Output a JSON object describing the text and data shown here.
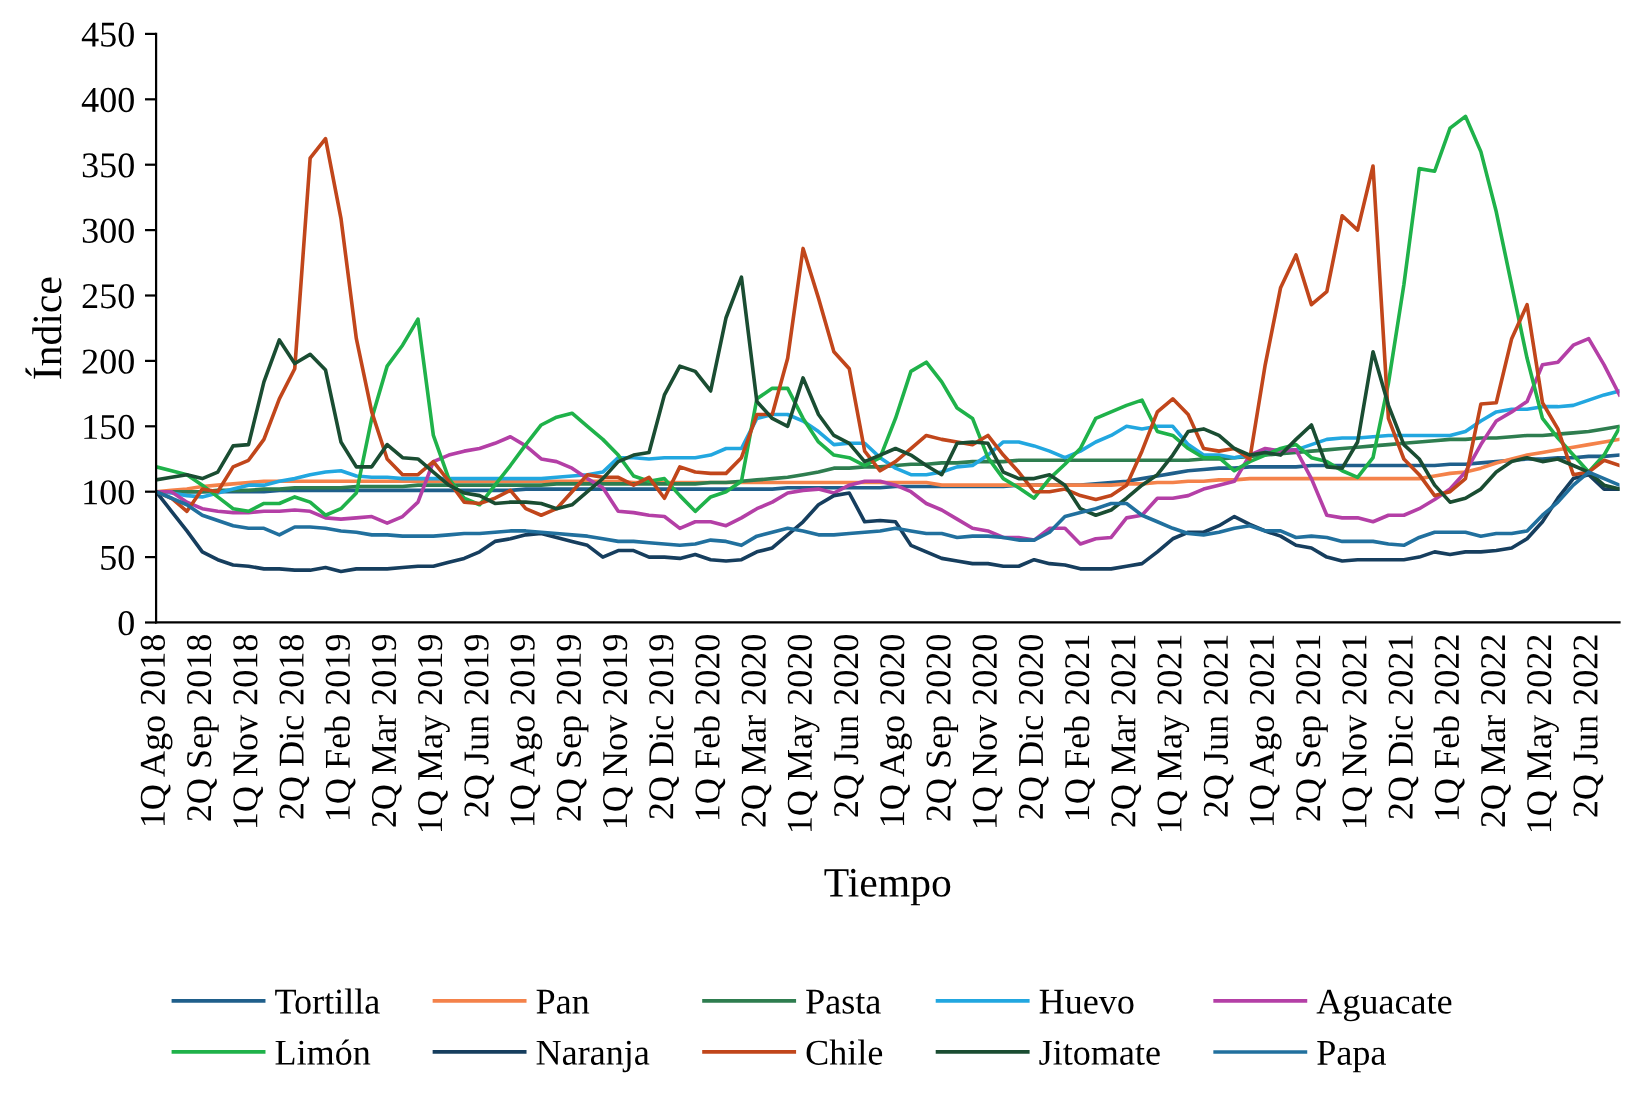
{
  "chart_data": {
    "type": "line",
    "xlabel": "Tiempo",
    "ylabel": "Índice",
    "categories": [
      "1Q Ago 2018",
      null,
      null,
      "2Q Sep 2018",
      null,
      null,
      "1Q Nov 2018",
      null,
      null,
      "2Q Dic 2018",
      null,
      null,
      "1Q Feb 2019",
      null,
      null,
      "2Q Mar 2019",
      null,
      null,
      "1Q May 2019",
      null,
      null,
      "2Q Jun 2019",
      null,
      null,
      "1Q Ago 2019",
      null,
      null,
      "2Q Sep 2019",
      null,
      null,
      "1Q Nov 2019",
      null,
      null,
      "2Q Dic 2019",
      null,
      null,
      "1Q Feb 2020",
      null,
      null,
      "2Q Mar 2020",
      null,
      null,
      "1Q May 2020",
      null,
      null,
      "2Q Jun 2020",
      null,
      null,
      "1Q Ago 2020",
      null,
      null,
      "2Q Sep 2020",
      null,
      null,
      "1Q Nov 2020",
      null,
      null,
      "2Q Dic 2020",
      null,
      null,
      "1Q Feb 2021",
      null,
      null,
      "2Q Mar 2021",
      null,
      null,
      "1Q May 2021",
      null,
      null,
      "2Q Jun 2021",
      null,
      null,
      "1Q Ago 2021",
      null,
      null,
      "2Q Sep 2021",
      null,
      null,
      "1Q Nov 2021",
      null,
      null,
      "2Q Dic 2021",
      null,
      null,
      "1Q Feb 2022",
      null,
      null,
      "2Q Mar 2022",
      null,
      null,
      "1Q May 2022",
      null,
      null,
      "2Q Jun 2022",
      null,
      null
    ],
    "series": [
      {
        "name": "Tortilla",
        "color": "#1f5f8b",
        "values": [
          100,
          100,
          100,
          100,
          100,
          100,
          100,
          100,
          101,
          101,
          101,
          101,
          101,
          101,
          101,
          101,
          101,
          101,
          101,
          101,
          101,
          101,
          101,
          101,
          102,
          102,
          102,
          102,
          102,
          102,
          102,
          102,
          102,
          102,
          102,
          102,
          102,
          102,
          102,
          102,
          102,
          103,
          103,
          103,
          103,
          103,
          103,
          103,
          104,
          104,
          104,
          104,
          104,
          104,
          104,
          104,
          105,
          105,
          105,
          105,
          105,
          106,
          107,
          108,
          110,
          112,
          114,
          116,
          117,
          118,
          118,
          119,
          119,
          119,
          119,
          120,
          120,
          120,
          120,
          120,
          120,
          120,
          120,
          120,
          121,
          121,
          122,
          123,
          124,
          125,
          125,
          126,
          126,
          127,
          127,
          128
        ]
      },
      {
        "name": "Pan",
        "color": "#f4824a",
        "values": [
          100,
          101,
          102,
          104,
          105,
          106,
          107,
          108,
          108,
          108,
          108,
          108,
          108,
          108,
          108,
          108,
          108,
          108,
          108,
          108,
          108,
          108,
          108,
          108,
          108,
          108,
          108,
          108,
          108,
          108,
          108,
          107,
          107,
          107,
          107,
          107,
          107,
          107,
          107,
          107,
          107,
          107,
          107,
          107,
          107,
          107,
          107,
          107,
          107,
          107,
          107,
          105,
          105,
          105,
          105,
          105,
          105,
          105,
          105,
          105,
          105,
          105,
          105,
          106,
          106,
          107,
          107,
          108,
          108,
          109,
          109,
          110,
          110,
          110,
          110,
          110,
          110,
          110,
          110,
          110,
          110,
          110,
          110,
          112,
          114,
          115,
          118,
          122,
          125,
          128,
          130,
          132,
          134,
          136,
          138,
          140
        ]
      },
      {
        "name": "Pasta",
        "color": "#2e7d4f",
        "values": [
          100,
          100,
          100,
          100,
          101,
          101,
          101,
          102,
          102,
          103,
          103,
          103,
          103,
          104,
          104,
          104,
          104,
          105,
          105,
          105,
          105,
          105,
          105,
          105,
          105,
          105,
          106,
          106,
          106,
          106,
          106,
          106,
          106,
          106,
          106,
          106,
          107,
          107,
          108,
          109,
          110,
          111,
          113,
          115,
          118,
          118,
          119,
          119,
          120,
          121,
          121,
          122,
          122,
          123,
          123,
          123,
          124,
          124,
          124,
          124,
          124,
          124,
          124,
          124,
          124,
          124,
          124,
          124,
          125,
          125,
          126,
          127,
          128,
          129,
          130,
          131,
          132,
          133,
          134,
          135,
          136,
          137,
          138,
          139,
          140,
          140,
          141,
          141,
          142,
          143,
          143,
          144,
          145,
          146,
          148,
          150
        ]
      },
      {
        "name": "Huevo",
        "color": "#22a7e0",
        "values": [
          100,
          99,
          97,
          96,
          99,
          102,
          105,
          105,
          108,
          110,
          113,
          115,
          116,
          112,
          111,
          111,
          110,
          110,
          110,
          110,
          110,
          110,
          110,
          110,
          110,
          110,
          111,
          112,
          113,
          115,
          126,
          126,
          125,
          126,
          126,
          126,
          128,
          133,
          133,
          156,
          159,
          159,
          154,
          146,
          136,
          137,
          137,
          126,
          118,
          113,
          113,
          115,
          119,
          120,
          128,
          138,
          138,
          135,
          131,
          126,
          131,
          138,
          143,
          150,
          148,
          150,
          150,
          136,
          128,
          128,
          126,
          128,
          131,
          132,
          132,
          136,
          140,
          141,
          141,
          142,
          143,
          143,
          143,
          143,
          143,
          146,
          154,
          161,
          163,
          163,
          165,
          165,
          166,
          170,
          174,
          177
        ]
      },
      {
        "name": "Aguacate",
        "color": "#b43fa6",
        "values": [
          100,
          100,
          92,
          87,
          85,
          84,
          84,
          85,
          85,
          86,
          85,
          80,
          79,
          80,
          81,
          76,
          81,
          92,
          123,
          128,
          131,
          133,
          137,
          142,
          135,
          125,
          123,
          118,
          110,
          103,
          85,
          84,
          82,
          81,
          72,
          77,
          77,
          74,
          80,
          87,
          92,
          99,
          101,
          102,
          99,
          105,
          108,
          108,
          105,
          100,
          91,
          86,
          79,
          72,
          70,
          65,
          65,
          63,
          72,
          72,
          60,
          64,
          65,
          80,
          82,
          95,
          95,
          97,
          102,
          105,
          108,
          128,
          133,
          131,
          132,
          110,
          82,
          80,
          80,
          77,
          82,
          82,
          87,
          94,
          102,
          115,
          136,
          154,
          161,
          169,
          197,
          199,
          212,
          217,
          197,
          174
        ]
      },
      {
        "name": "Limón",
        "color": "#1fb24a",
        "values": [
          119,
          116,
          113,
          105,
          96,
          87,
          85,
          91,
          91,
          96,
          92,
          82,
          87,
          99,
          156,
          196,
          212,
          232,
          143,
          110,
          95,
          90,
          105,
          120,
          136,
          151,
          157,
          160,
          150,
          140,
          128,
          112,
          108,
          110,
          97,
          85,
          96,
          100,
          108,
          171,
          179,
          179,
          156,
          138,
          128,
          126,
          120,
          126,
          156,
          192,
          199,
          184,
          164,
          156,
          126,
          110,
          103,
          95,
          110,
          121,
          133,
          156,
          161,
          166,
          170,
          146,
          143,
          133,
          126,
          126,
          116,
          123,
          128,
          133,
          136,
          126,
          123,
          116,
          111,
          126,
          183,
          258,
          347,
          345,
          378,
          387,
          360,
          314,
          258,
          202,
          156,
          141,
          128,
          115,
          128,
          149
        ]
      },
      {
        "name": "Naranja",
        "color": "#163e5e",
        "values": [
          100,
          85,
          70,
          54,
          48,
          44,
          43,
          41,
          41,
          40,
          40,
          42,
          39,
          41,
          41,
          41,
          42,
          43,
          43,
          46,
          49,
          54,
          62,
          64,
          67,
          68,
          65,
          62,
          59,
          50,
          55,
          55,
          50,
          50,
          49,
          52,
          48,
          47,
          48,
          54,
          57,
          67,
          77,
          90,
          97,
          99,
          77,
          78,
          77,
          59,
          54,
          49,
          47,
          45,
          45,
          43,
          43,
          48,
          45,
          44,
          41,
          41,
          41,
          43,
          45,
          54,
          64,
          69,
          69,
          74,
          81,
          75,
          70,
          66,
          59,
          57,
          50,
          47,
          48,
          48,
          48,
          48,
          50,
          54,
          52,
          54,
          54,
          55,
          57,
          64,
          77,
          95,
          110,
          113,
          102,
          102
        ]
      },
      {
        "name": "Chile",
        "color": "#c1461b",
        "values": [
          100,
          95,
          85,
          102,
          100,
          119,
          124,
          140,
          171,
          194,
          355,
          370,
          309,
          217,
          161,
          125,
          113,
          113,
          123,
          108,
          92,
          91,
          95,
          101,
          87,
          82,
          87,
          100,
          113,
          111,
          111,
          105,
          111,
          95,
          119,
          115,
          114,
          114,
          126,
          159,
          159,
          202,
          286,
          248,
          207,
          194,
          131,
          116,
          123,
          133,
          143,
          140,
          138,
          136,
          143,
          128,
          115,
          100,
          100,
          102,
          97,
          94,
          97,
          105,
          131,
          161,
          171,
          159,
          133,
          131,
          133,
          125,
          197,
          256,
          281,
          243,
          253,
          311,
          300,
          349,
          156,
          125,
          113,
          97,
          100,
          110,
          167,
          168,
          217,
          243,
          168,
          148,
          113,
          115,
          124,
          120
        ]
      },
      {
        "name": "Jitomate",
        "color": "#1a4d32",
        "values": [
          109,
          111,
          113,
          110,
          115,
          135,
          136,
          184,
          216,
          198,
          205,
          193,
          138,
          119,
          119,
          136,
          126,
          125,
          115,
          105,
          99,
          97,
          91,
          92,
          92,
          91,
          87,
          90,
          100,
          110,
          123,
          128,
          130,
          174,
          196,
          192,
          177,
          233,
          264,
          169,
          156,
          150,
          187,
          159,
          143,
          137,
          123,
          128,
          133,
          128,
          120,
          113,
          137,
          138,
          137,
          115,
          110,
          110,
          113,
          105,
          87,
          82,
          86,
          95,
          105,
          113,
          128,
          146,
          148,
          143,
          133,
          128,
          130,
          128,
          140,
          151,
          119,
          118,
          138,
          207,
          166,
          136,
          125,
          105,
          92,
          95,
          102,
          115,
          123,
          126,
          123,
          125,
          120,
          115,
          105,
          102
        ]
      },
      {
        "name": "Papa",
        "color": "#21709e",
        "values": [
          100,
          95,
          90,
          82,
          78,
          74,
          72,
          72,
          67,
          73,
          73,
          72,
          70,
          69,
          67,
          67,
          66,
          66,
          66,
          67,
          68,
          68,
          69,
          70,
          70,
          69,
          68,
          67,
          66,
          64,
          62,
          62,
          61,
          60,
          59,
          60,
          63,
          62,
          59,
          66,
          69,
          72,
          70,
          67,
          67,
          68,
          69,
          70,
          72,
          70,
          68,
          68,
          65,
          66,
          66,
          65,
          63,
          63,
          69,
          81,
          84,
          87,
          91,
          91,
          82,
          77,
          72,
          68,
          67,
          69,
          72,
          74,
          70,
          70,
          65,
          66,
          65,
          62,
          62,
          62,
          60,
          59,
          65,
          69,
          69,
          69,
          66,
          68,
          68,
          70,
          82,
          92,
          105,
          115,
          110,
          105
        ]
      }
    ],
    "ylim": [
      0,
      450
    ],
    "yticks": [
      0,
      50,
      100,
      150,
      200,
      250,
      300,
      350,
      400,
      450
    ],
    "legend": "bottom",
    "line_style": "solid"
  }
}
